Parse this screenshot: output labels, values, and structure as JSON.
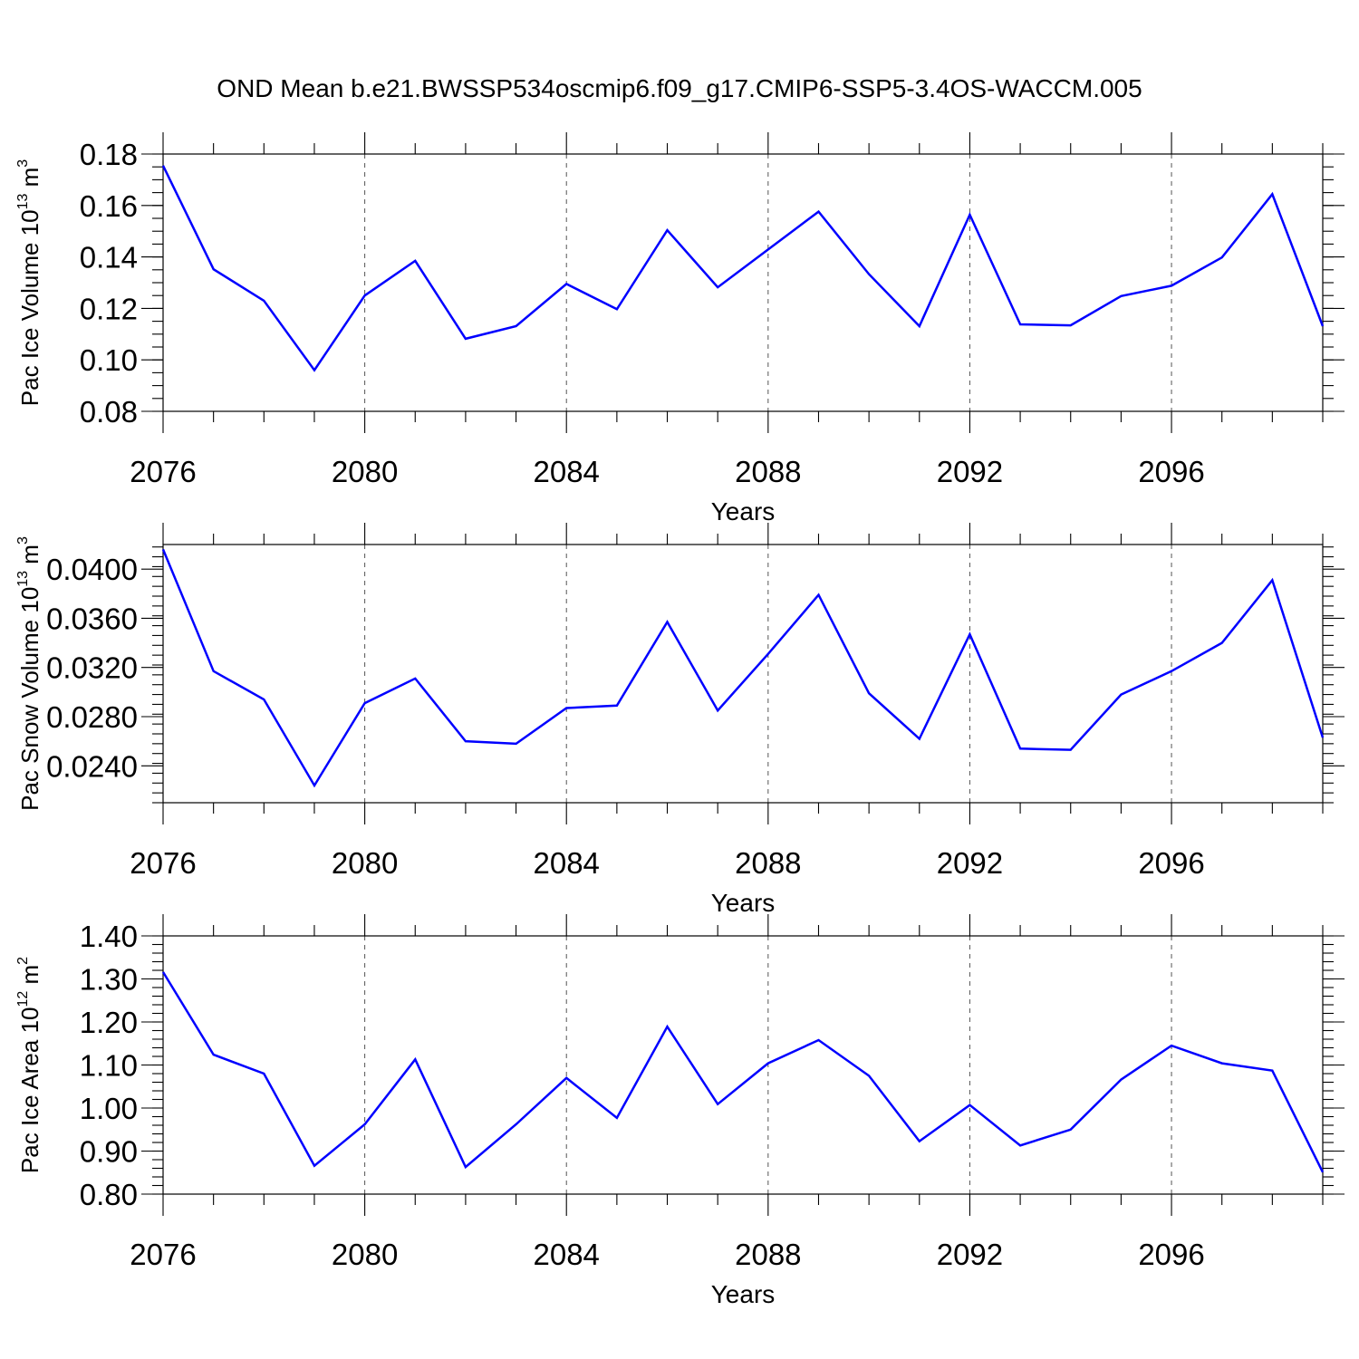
{
  "title": "OND Mean b.e21.BWSSP534oscmip6.f09_g17.CMIP6-SSP5-3.4OS-WACCM.005",
  "colors": {
    "line": "#0000ff",
    "axis": "#000000",
    "grid": "#555555"
  },
  "chart_data": [
    {
      "type": "line",
      "xlabel": "Years",
      "ylabel": {
        "text": "Pac Ice Volume 10",
        "sup": "13",
        "unit": " m",
        "unit_sup": "3"
      },
      "xlim": [
        2076,
        2099
      ],
      "ylim": [
        0.08,
        0.18
      ],
      "x_ticks": [
        2076,
        2080,
        2084,
        2088,
        2092,
        2096
      ],
      "x_tick_labels": [
        "2076",
        "2080",
        "2084",
        "2088",
        "2092",
        "2096"
      ],
      "y_ticks": [
        0.08,
        0.1,
        0.12,
        0.14,
        0.16,
        0.18
      ],
      "y_tick_labels": [
        "0.08",
        "0.10",
        "0.12",
        "0.14",
        "0.16",
        "0.18"
      ],
      "y_minor_step": 0.005,
      "x": [
        2076,
        2077,
        2078,
        2079,
        2080,
        2081,
        2082,
        2083,
        2084,
        2085,
        2086,
        2087,
        2088,
        2089,
        2090,
        2091,
        2092,
        2093,
        2094,
        2095,
        2096,
        2097,
        2098,
        2099
      ],
      "series": [
        {
          "name": "Pac Ice Volume",
          "values": [
            0.1755,
            0.1352,
            0.123,
            0.096,
            0.125,
            0.1385,
            0.1082,
            0.1131,
            0.1295,
            0.1197,
            0.1504,
            0.1282,
            0.1429,
            0.1576,
            0.1333,
            0.1131,
            0.1564,
            0.1138,
            0.1134,
            0.1248,
            0.1288,
            0.1398,
            0.1644,
            0.1131
          ]
        }
      ]
    },
    {
      "type": "line",
      "xlabel": "Years",
      "ylabel": {
        "text": "Pac Snow Volume 10",
        "sup": "13",
        "unit": " m",
        "unit_sup": "3"
      },
      "xlim": [
        2076,
        2099
      ],
      "ylim": [
        0.021,
        0.042
      ],
      "x_ticks": [
        2076,
        2080,
        2084,
        2088,
        2092,
        2096
      ],
      "x_tick_labels": [
        "2076",
        "2080",
        "2084",
        "2088",
        "2092",
        "2096"
      ],
      "y_ticks": [
        0.024,
        0.028,
        0.032,
        0.036,
        0.04
      ],
      "y_tick_labels": [
        "0.0240",
        "0.0280",
        "0.0320",
        "0.0360",
        "0.0400"
      ],
      "y_minor_step": 0.0008,
      "x": [
        2076,
        2077,
        2078,
        2079,
        2080,
        2081,
        2082,
        2083,
        2084,
        2085,
        2086,
        2087,
        2088,
        2089,
        2090,
        2091,
        2092,
        2093,
        2094,
        2095,
        2096,
        2097,
        2098,
        2099
      ],
      "series": [
        {
          "name": "Pac Snow Volume",
          "values": [
            0.0416,
            0.0317,
            0.0294,
            0.0224,
            0.0291,
            0.0311,
            0.026,
            0.0258,
            0.0287,
            0.0289,
            0.0357,
            0.0285,
            0.0331,
            0.0379,
            0.0299,
            0.0262,
            0.0347,
            0.0254,
            0.0253,
            0.0298,
            0.0317,
            0.034,
            0.0391,
            0.0263
          ]
        }
      ]
    },
    {
      "type": "line",
      "xlabel": "Years",
      "ylabel": {
        "text": "Pac Ice Area 10",
        "sup": "12",
        "unit": " m",
        "unit_sup": "2"
      },
      "xlim": [
        2076,
        2099
      ],
      "ylim": [
        0.8,
        1.4
      ],
      "x_ticks": [
        2076,
        2080,
        2084,
        2088,
        2092,
        2096
      ],
      "x_tick_labels": [
        "2076",
        "2080",
        "2084",
        "2088",
        "2092",
        "2096"
      ],
      "y_ticks": [
        0.8,
        0.9,
        1.0,
        1.1,
        1.2,
        1.3,
        1.4
      ],
      "y_tick_labels": [
        "0.80",
        "0.90",
        "1.00",
        "1.10",
        "1.20",
        "1.30",
        "1.40"
      ],
      "y_minor_step": 0.02,
      "x": [
        2076,
        2077,
        2078,
        2079,
        2080,
        2081,
        2082,
        2083,
        2084,
        2085,
        2086,
        2087,
        2088,
        2089,
        2090,
        2091,
        2092,
        2093,
        2094,
        2095,
        2096,
        2097,
        2098,
        2099
      ],
      "series": [
        {
          "name": "Pac Ice Area",
          "values": [
            1.316,
            1.124,
            1.08,
            0.866,
            0.962,
            1.113,
            0.863,
            0.962,
            1.07,
            0.977,
            1.189,
            1.009,
            1.104,
            1.158,
            1.075,
            0.923,
            1.007,
            0.913,
            0.95,
            1.066,
            1.145,
            1.104,
            1.087,
            0.851
          ]
        }
      ]
    }
  ]
}
